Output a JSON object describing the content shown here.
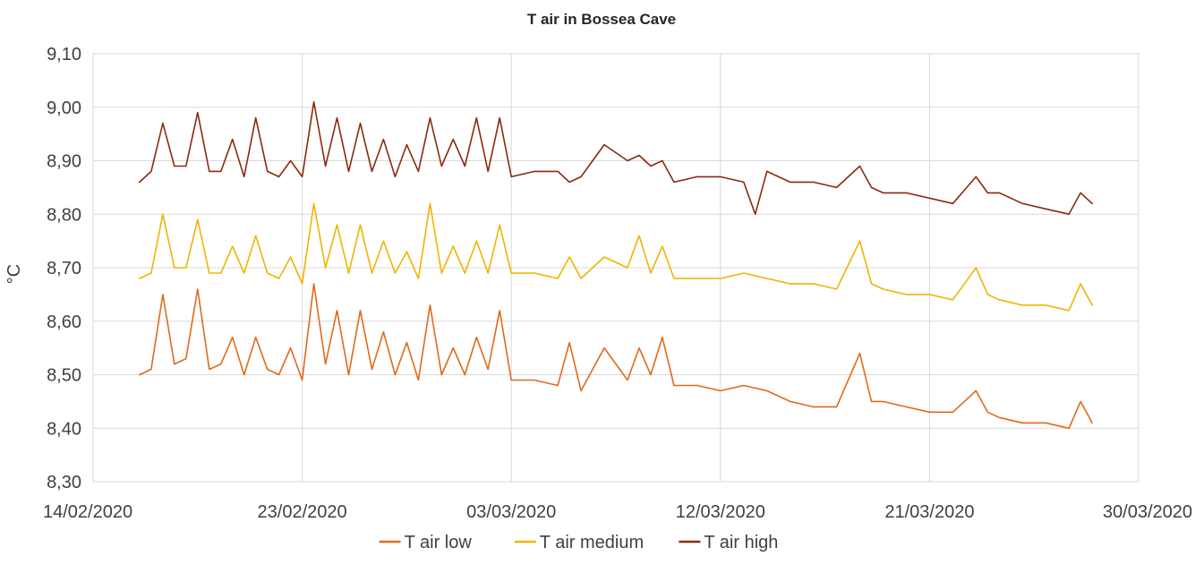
{
  "chart_data": {
    "type": "line",
    "title": "T air in Bossea Cave",
    "xlabel": "",
    "ylabel": "°C",
    "x_range": [
      "14/02/2020",
      "30/03/2020"
    ],
    "ylim": [
      8.3,
      9.1
    ],
    "x_ticks": [
      "14/02/2020",
      "23/02/2020",
      "03/03/2020",
      "12/03/2020",
      "21/03/2020",
      "30/03/2020"
    ],
    "y_ticks": [
      "8,30",
      "8,40",
      "8,50",
      "8,60",
      "8,70",
      "8,80",
      "8,90",
      "9,00",
      "9,10"
    ],
    "grid": true,
    "legend_position": "bottom",
    "colors": {
      "low": "#e06a1b",
      "medium": "#f0b400",
      "high": "#8b2a0e",
      "grid": "#d9d9d9"
    },
    "series": [
      {
        "name": "T air low",
        "color": "#e06a1b",
        "points": [
          [
            "16/02/2020",
            8.5
          ],
          [
            "16/02/2020 12:00",
            8.51
          ],
          [
            "17/02/2020",
            8.65
          ],
          [
            "17/02/2020 12:00",
            8.52
          ],
          [
            "18/02/2020",
            8.53
          ],
          [
            "18/02/2020 12:00",
            8.66
          ],
          [
            "19/02/2020",
            8.51
          ],
          [
            "19/02/2020 12:00",
            8.52
          ],
          [
            "20/02/2020",
            8.57
          ],
          [
            "20/02/2020 12:00",
            8.5
          ],
          [
            "21/02/2020",
            8.57
          ],
          [
            "21/02/2020 12:00",
            8.51
          ],
          [
            "22/02/2020",
            8.5
          ],
          [
            "22/02/2020 12:00",
            8.55
          ],
          [
            "23/02/2020",
            8.49
          ],
          [
            "23/02/2020 12:00",
            8.67
          ],
          [
            "24/02/2020",
            8.52
          ],
          [
            "24/02/2020 12:00",
            8.62
          ],
          [
            "25/02/2020",
            8.5
          ],
          [
            "25/02/2020 12:00",
            8.62
          ],
          [
            "26/02/2020",
            8.51
          ],
          [
            "26/02/2020 12:00",
            8.58
          ],
          [
            "27/02/2020",
            8.5
          ],
          [
            "27/02/2020 12:00",
            8.56
          ],
          [
            "28/02/2020",
            8.49
          ],
          [
            "28/02/2020 12:00",
            8.63
          ],
          [
            "29/02/2020",
            8.5
          ],
          [
            "29/02/2020 12:00",
            8.55
          ],
          [
            "01/03/2020",
            8.5
          ],
          [
            "01/03/2020 12:00",
            8.57
          ],
          [
            "02/03/2020",
            8.51
          ],
          [
            "02/03/2020 12:00",
            8.62
          ],
          [
            "03/03/2020",
            8.49
          ],
          [
            "04/03/2020",
            8.49
          ],
          [
            "05/03/2020",
            8.48
          ],
          [
            "05/03/2020 12:00",
            8.56
          ],
          [
            "06/03/2020",
            8.47
          ],
          [
            "07/03/2020",
            8.55
          ],
          [
            "08/03/2020",
            8.49
          ],
          [
            "08/03/2020 12:00",
            8.55
          ],
          [
            "09/03/2020",
            8.5
          ],
          [
            "09/03/2020 12:00",
            8.57
          ],
          [
            "10/03/2020",
            8.48
          ],
          [
            "11/03/2020",
            8.48
          ],
          [
            "12/03/2020",
            8.47
          ],
          [
            "13/03/2020",
            8.48
          ],
          [
            "14/03/2020",
            8.47
          ],
          [
            "15/03/2020",
            8.45
          ],
          [
            "16/03/2020",
            8.44
          ],
          [
            "17/03/2020",
            8.44
          ],
          [
            "18/03/2020",
            8.54
          ],
          [
            "18/03/2020 12:00",
            8.45
          ],
          [
            "19/03/2020",
            8.45
          ],
          [
            "20/03/2020",
            8.44
          ],
          [
            "21/03/2020",
            8.43
          ],
          [
            "22/03/2020",
            8.43
          ],
          [
            "23/03/2020",
            8.47
          ],
          [
            "23/03/2020 12:00",
            8.43
          ],
          [
            "24/03/2020",
            8.42
          ],
          [
            "25/03/2020",
            8.41
          ],
          [
            "26/03/2020",
            8.41
          ],
          [
            "27/03/2020",
            8.4
          ],
          [
            "27/03/2020 12:00",
            8.45
          ],
          [
            "28/03/2020",
            8.41
          ]
        ]
      },
      {
        "name": "T air medium",
        "color": "#f0b400",
        "points": [
          [
            "16/02/2020",
            8.68
          ],
          [
            "16/02/2020 12:00",
            8.69
          ],
          [
            "17/02/2020",
            8.8
          ],
          [
            "17/02/2020 12:00",
            8.7
          ],
          [
            "18/02/2020",
            8.7
          ],
          [
            "18/02/2020 12:00",
            8.79
          ],
          [
            "19/02/2020",
            8.69
          ],
          [
            "19/02/2020 12:00",
            8.69
          ],
          [
            "20/02/2020",
            8.74
          ],
          [
            "20/02/2020 12:00",
            8.69
          ],
          [
            "21/02/2020",
            8.76
          ],
          [
            "21/02/2020 12:00",
            8.69
          ],
          [
            "22/02/2020",
            8.68
          ],
          [
            "22/02/2020 12:00",
            8.72
          ],
          [
            "23/02/2020",
            8.67
          ],
          [
            "23/02/2020 12:00",
            8.82
          ],
          [
            "24/02/2020",
            8.7
          ],
          [
            "24/02/2020 12:00",
            8.78
          ],
          [
            "25/02/2020",
            8.69
          ],
          [
            "25/02/2020 12:00",
            8.78
          ],
          [
            "26/02/2020",
            8.69
          ],
          [
            "26/02/2020 12:00",
            8.75
          ],
          [
            "27/02/2020",
            8.69
          ],
          [
            "27/02/2020 12:00",
            8.73
          ],
          [
            "28/02/2020",
            8.68
          ],
          [
            "28/02/2020 12:00",
            8.82
          ],
          [
            "29/02/2020",
            8.69
          ],
          [
            "29/02/2020 12:00",
            8.74
          ],
          [
            "01/03/2020",
            8.69
          ],
          [
            "01/03/2020 12:00",
            8.75
          ],
          [
            "02/03/2020",
            8.69
          ],
          [
            "02/03/2020 12:00",
            8.78
          ],
          [
            "03/03/2020",
            8.69
          ],
          [
            "04/03/2020",
            8.69
          ],
          [
            "05/03/2020",
            8.68
          ],
          [
            "05/03/2020 12:00",
            8.72
          ],
          [
            "06/03/2020",
            8.68
          ],
          [
            "07/03/2020",
            8.72
          ],
          [
            "08/03/2020",
            8.7
          ],
          [
            "08/03/2020 12:00",
            8.76
          ],
          [
            "09/03/2020",
            8.69
          ],
          [
            "09/03/2020 12:00",
            8.74
          ],
          [
            "10/03/2020",
            8.68
          ],
          [
            "11/03/2020",
            8.68
          ],
          [
            "12/03/2020",
            8.68
          ],
          [
            "13/03/2020",
            8.69
          ],
          [
            "14/03/2020",
            8.68
          ],
          [
            "15/03/2020",
            8.67
          ],
          [
            "16/03/2020",
            8.67
          ],
          [
            "17/03/2020",
            8.66
          ],
          [
            "18/03/2020",
            8.75
          ],
          [
            "18/03/2020 12:00",
            8.67
          ],
          [
            "19/03/2020",
            8.66
          ],
          [
            "20/03/2020",
            8.65
          ],
          [
            "21/03/2020",
            8.65
          ],
          [
            "22/03/2020",
            8.64
          ],
          [
            "23/03/2020",
            8.7
          ],
          [
            "23/03/2020 12:00",
            8.65
          ],
          [
            "24/03/2020",
            8.64
          ],
          [
            "25/03/2020",
            8.63
          ],
          [
            "26/03/2020",
            8.63
          ],
          [
            "27/03/2020",
            8.62
          ],
          [
            "27/03/2020 12:00",
            8.67
          ],
          [
            "28/03/2020",
            8.63
          ]
        ]
      },
      {
        "name": "T air high",
        "color": "#8b2a0e",
        "points": [
          [
            "16/02/2020",
            8.86
          ],
          [
            "16/02/2020 12:00",
            8.88
          ],
          [
            "17/02/2020",
            8.97
          ],
          [
            "17/02/2020 12:00",
            8.89
          ],
          [
            "18/02/2020",
            8.89
          ],
          [
            "18/02/2020 12:00",
            8.99
          ],
          [
            "19/02/2020",
            8.88
          ],
          [
            "19/02/2020 12:00",
            8.88
          ],
          [
            "20/02/2020",
            8.94
          ],
          [
            "20/02/2020 12:00",
            8.87
          ],
          [
            "21/02/2020",
            8.98
          ],
          [
            "21/02/2020 12:00",
            8.88
          ],
          [
            "22/02/2020",
            8.87
          ],
          [
            "22/02/2020 12:00",
            8.9
          ],
          [
            "23/02/2020",
            8.87
          ],
          [
            "23/02/2020 12:00",
            9.01
          ],
          [
            "24/02/2020",
            8.89
          ],
          [
            "24/02/2020 12:00",
            8.98
          ],
          [
            "25/02/2020",
            8.88
          ],
          [
            "25/02/2020 12:00",
            8.97
          ],
          [
            "26/02/2020",
            8.88
          ],
          [
            "26/02/2020 12:00",
            8.94
          ],
          [
            "27/02/2020",
            8.87
          ],
          [
            "27/02/2020 12:00",
            8.93
          ],
          [
            "28/02/2020",
            8.88
          ],
          [
            "28/02/2020 12:00",
            8.98
          ],
          [
            "29/02/2020",
            8.89
          ],
          [
            "29/02/2020 12:00",
            8.94
          ],
          [
            "01/03/2020",
            8.89
          ],
          [
            "01/03/2020 12:00",
            8.98
          ],
          [
            "02/03/2020",
            8.88
          ],
          [
            "02/03/2020 12:00",
            8.98
          ],
          [
            "03/03/2020",
            8.87
          ],
          [
            "04/03/2020",
            8.88
          ],
          [
            "05/03/2020",
            8.88
          ],
          [
            "05/03/2020 12:00",
            8.86
          ],
          [
            "06/03/2020",
            8.87
          ],
          [
            "07/03/2020",
            8.93
          ],
          [
            "08/03/2020",
            8.9
          ],
          [
            "08/03/2020 12:00",
            8.91
          ],
          [
            "09/03/2020",
            8.89
          ],
          [
            "09/03/2020 12:00",
            8.9
          ],
          [
            "10/03/2020",
            8.86
          ],
          [
            "11/03/2020",
            8.87
          ],
          [
            "12/03/2020",
            8.87
          ],
          [
            "13/03/2020",
            8.86
          ],
          [
            "13/03/2020 12:00",
            8.8
          ],
          [
            "14/03/2020",
            8.88
          ],
          [
            "15/03/2020",
            8.86
          ],
          [
            "16/03/2020",
            8.86
          ],
          [
            "17/03/2020",
            8.85
          ],
          [
            "18/03/2020",
            8.89
          ],
          [
            "18/03/2020 12:00",
            8.85
          ],
          [
            "19/03/2020",
            8.84
          ],
          [
            "20/03/2020",
            8.84
          ],
          [
            "21/03/2020",
            8.83
          ],
          [
            "22/03/2020",
            8.82
          ],
          [
            "23/03/2020",
            8.87
          ],
          [
            "23/03/2020 12:00",
            8.84
          ],
          [
            "24/03/2020",
            8.84
          ],
          [
            "25/03/2020",
            8.82
          ],
          [
            "26/03/2020",
            8.81
          ],
          [
            "27/03/2020",
            8.8
          ],
          [
            "27/03/2020 12:00",
            8.84
          ],
          [
            "28/03/2020",
            8.82
          ]
        ]
      }
    ]
  }
}
